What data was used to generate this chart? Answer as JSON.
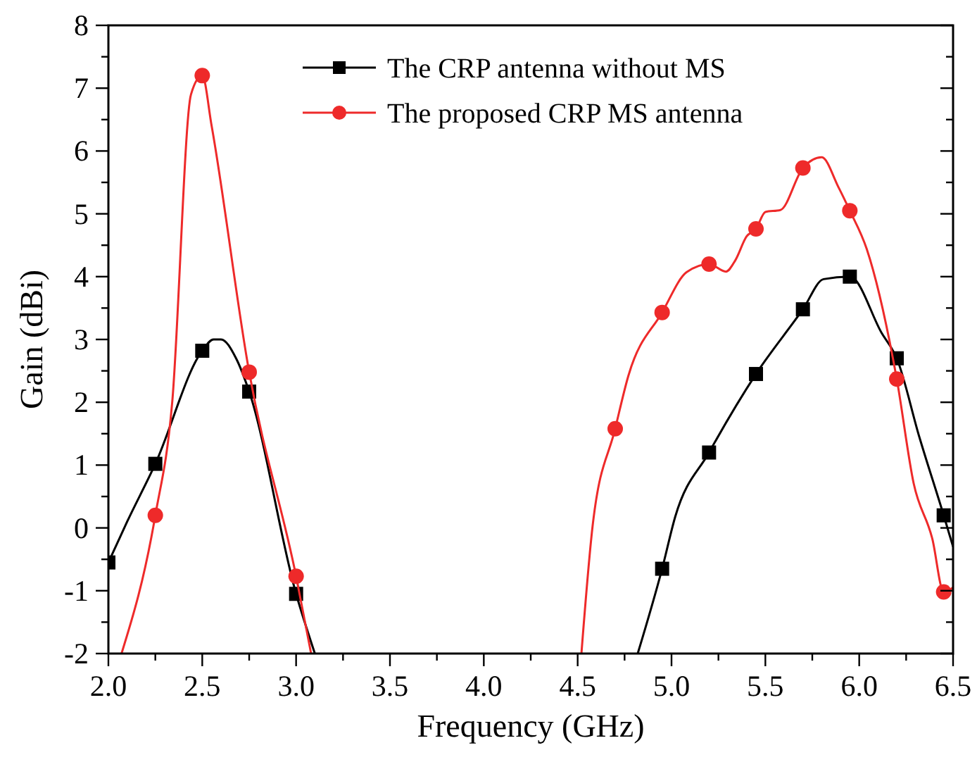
{
  "chart_data": {
    "type": "line",
    "xlabel": "Frequency (GHz)",
    "ylabel": "Gain (dBi)",
    "xlim": [
      2,
      6.5
    ],
    "ylim": [
      -2,
      8
    ],
    "xticks": [
      {
        "value": 2,
        "label": "2.0"
      },
      {
        "value": 2.25,
        "label": null
      },
      {
        "value": 2.5,
        "label": "2.5"
      },
      {
        "value": 2.75,
        "label": null
      },
      {
        "value": 3,
        "label": "3.0"
      },
      {
        "value": 3.25,
        "label": null
      },
      {
        "value": 3.5,
        "label": "3.5"
      },
      {
        "value": 3.75,
        "label": null
      },
      {
        "value": 4,
        "label": "4.0"
      },
      {
        "value": 4.25,
        "label": null
      },
      {
        "value": 4.5,
        "label": "4.5"
      },
      {
        "value": 4.75,
        "label": null
      },
      {
        "value": 5,
        "label": "5.0"
      },
      {
        "value": 5.25,
        "label": null
      },
      {
        "value": 5.5,
        "label": "5.5"
      },
      {
        "value": 5.75,
        "label": null
      },
      {
        "value": 6,
        "label": "6.0"
      },
      {
        "value": 6.25,
        "label": null
      },
      {
        "value": 6.5,
        "label": "6.5"
      }
    ],
    "yticks": [
      -2,
      {
        "value": -1.5,
        "label": null
      },
      -1,
      {
        "value": -0.5,
        "label": null
      },
      0,
      {
        "value": 0.5,
        "label": null
      },
      1,
      {
        "value": 1.5,
        "label": null
      },
      2,
      {
        "value": 2.5,
        "label": null
      },
      3,
      {
        "value": 3.5,
        "label": null
      },
      4,
      {
        "value": 4.5,
        "label": null
      },
      5,
      {
        "value": 5.5,
        "label": null
      },
      6,
      {
        "value": 6.5,
        "label": null
      },
      7,
      {
        "value": 7.5,
        "label": null
      },
      8
    ],
    "grid": false,
    "legend": "top",
    "line_style": "solid",
    "series": [
      {
        "name": "The CRP antenna without MS",
        "color": "#000000",
        "marker": "none",
        "x": [
          2.0,
          2.1,
          2.25,
          2.5,
          2.56,
          2.6,
          2.68,
          2.75,
          3.0,
          3.1,
          3.5,
          4.82,
          4.95,
          5.02,
          5.2,
          5.45,
          5.7,
          5.81,
          5.95,
          6.12,
          6.2,
          6.32,
          6.45,
          6.5
        ],
        "values": [
          -0.55,
          0.1,
          1.02,
          2.82,
          3.0,
          3.0,
          2.7,
          2.17,
          -1.05,
          -2,
          null,
          -2,
          -0.65,
          0.18,
          1.2,
          2.45,
          3.48,
          3.96,
          4.0,
          3.1,
          2.7,
          1.45,
          0.2,
          -0.3
        ]
      },
      {
        "color": "#000000",
        "type": "scatter",
        "marker": "square",
        "x": [
          2.0,
          2.25,
          2.5,
          2.75,
          3.0,
          4.95,
          5.2,
          5.45,
          5.7,
          5.95,
          6.2,
          6.45
        ],
        "values": [
          -0.55,
          1.02,
          2.82,
          2.17,
          -1.05,
          -0.65,
          1.2,
          2.45,
          3.48,
          4.0,
          2.7,
          0.2
        ]
      },
      {
        "name": "The proposed CRP MS antenna",
        "color": "#ee2a2a",
        "marker": "none",
        "x": [
          2.07,
          2.25,
          2.34,
          2.44,
          2.5,
          2.55,
          2.75,
          3.0,
          3.08,
          3.5,
          4.52,
          4.58,
          4.7,
          4.77,
          4.95,
          5.08,
          5.2,
          5.29,
          5.34,
          5.4,
          5.45,
          5.5,
          5.58,
          5.7,
          5.8,
          5.89,
          5.95,
          6.04,
          6.2,
          6.29,
          6.39,
          6.45,
          6.5
        ],
        "values": [
          -2,
          0.2,
          2.0,
          6.9,
          7.2,
          6.4,
          2.48,
          -0.77,
          -2,
          null,
          -2,
          0.04,
          1.58,
          2.42,
          3.43,
          4.07,
          4.2,
          4.08,
          4.26,
          4.64,
          4.76,
          5.03,
          5.06,
          5.73,
          5.9,
          5.42,
          5.05,
          4.44,
          2.37,
          0.71,
          -0.18,
          -1.02,
          -0.95
        ]
      },
      {
        "color": "#ee2a2a",
        "type": "scatter",
        "marker": "circle",
        "x": [
          2.25,
          2.5,
          2.75,
          3.0,
          4.7,
          4.95,
          5.2,
          5.45,
          5.7,
          5.95,
          6.2,
          6.45
        ],
        "values": [
          0.2,
          7.2,
          2.48,
          -0.77,
          1.58,
          3.43,
          4.2,
          4.76,
          5.73,
          5.05,
          2.37,
          -1.02
        ]
      }
    ]
  }
}
